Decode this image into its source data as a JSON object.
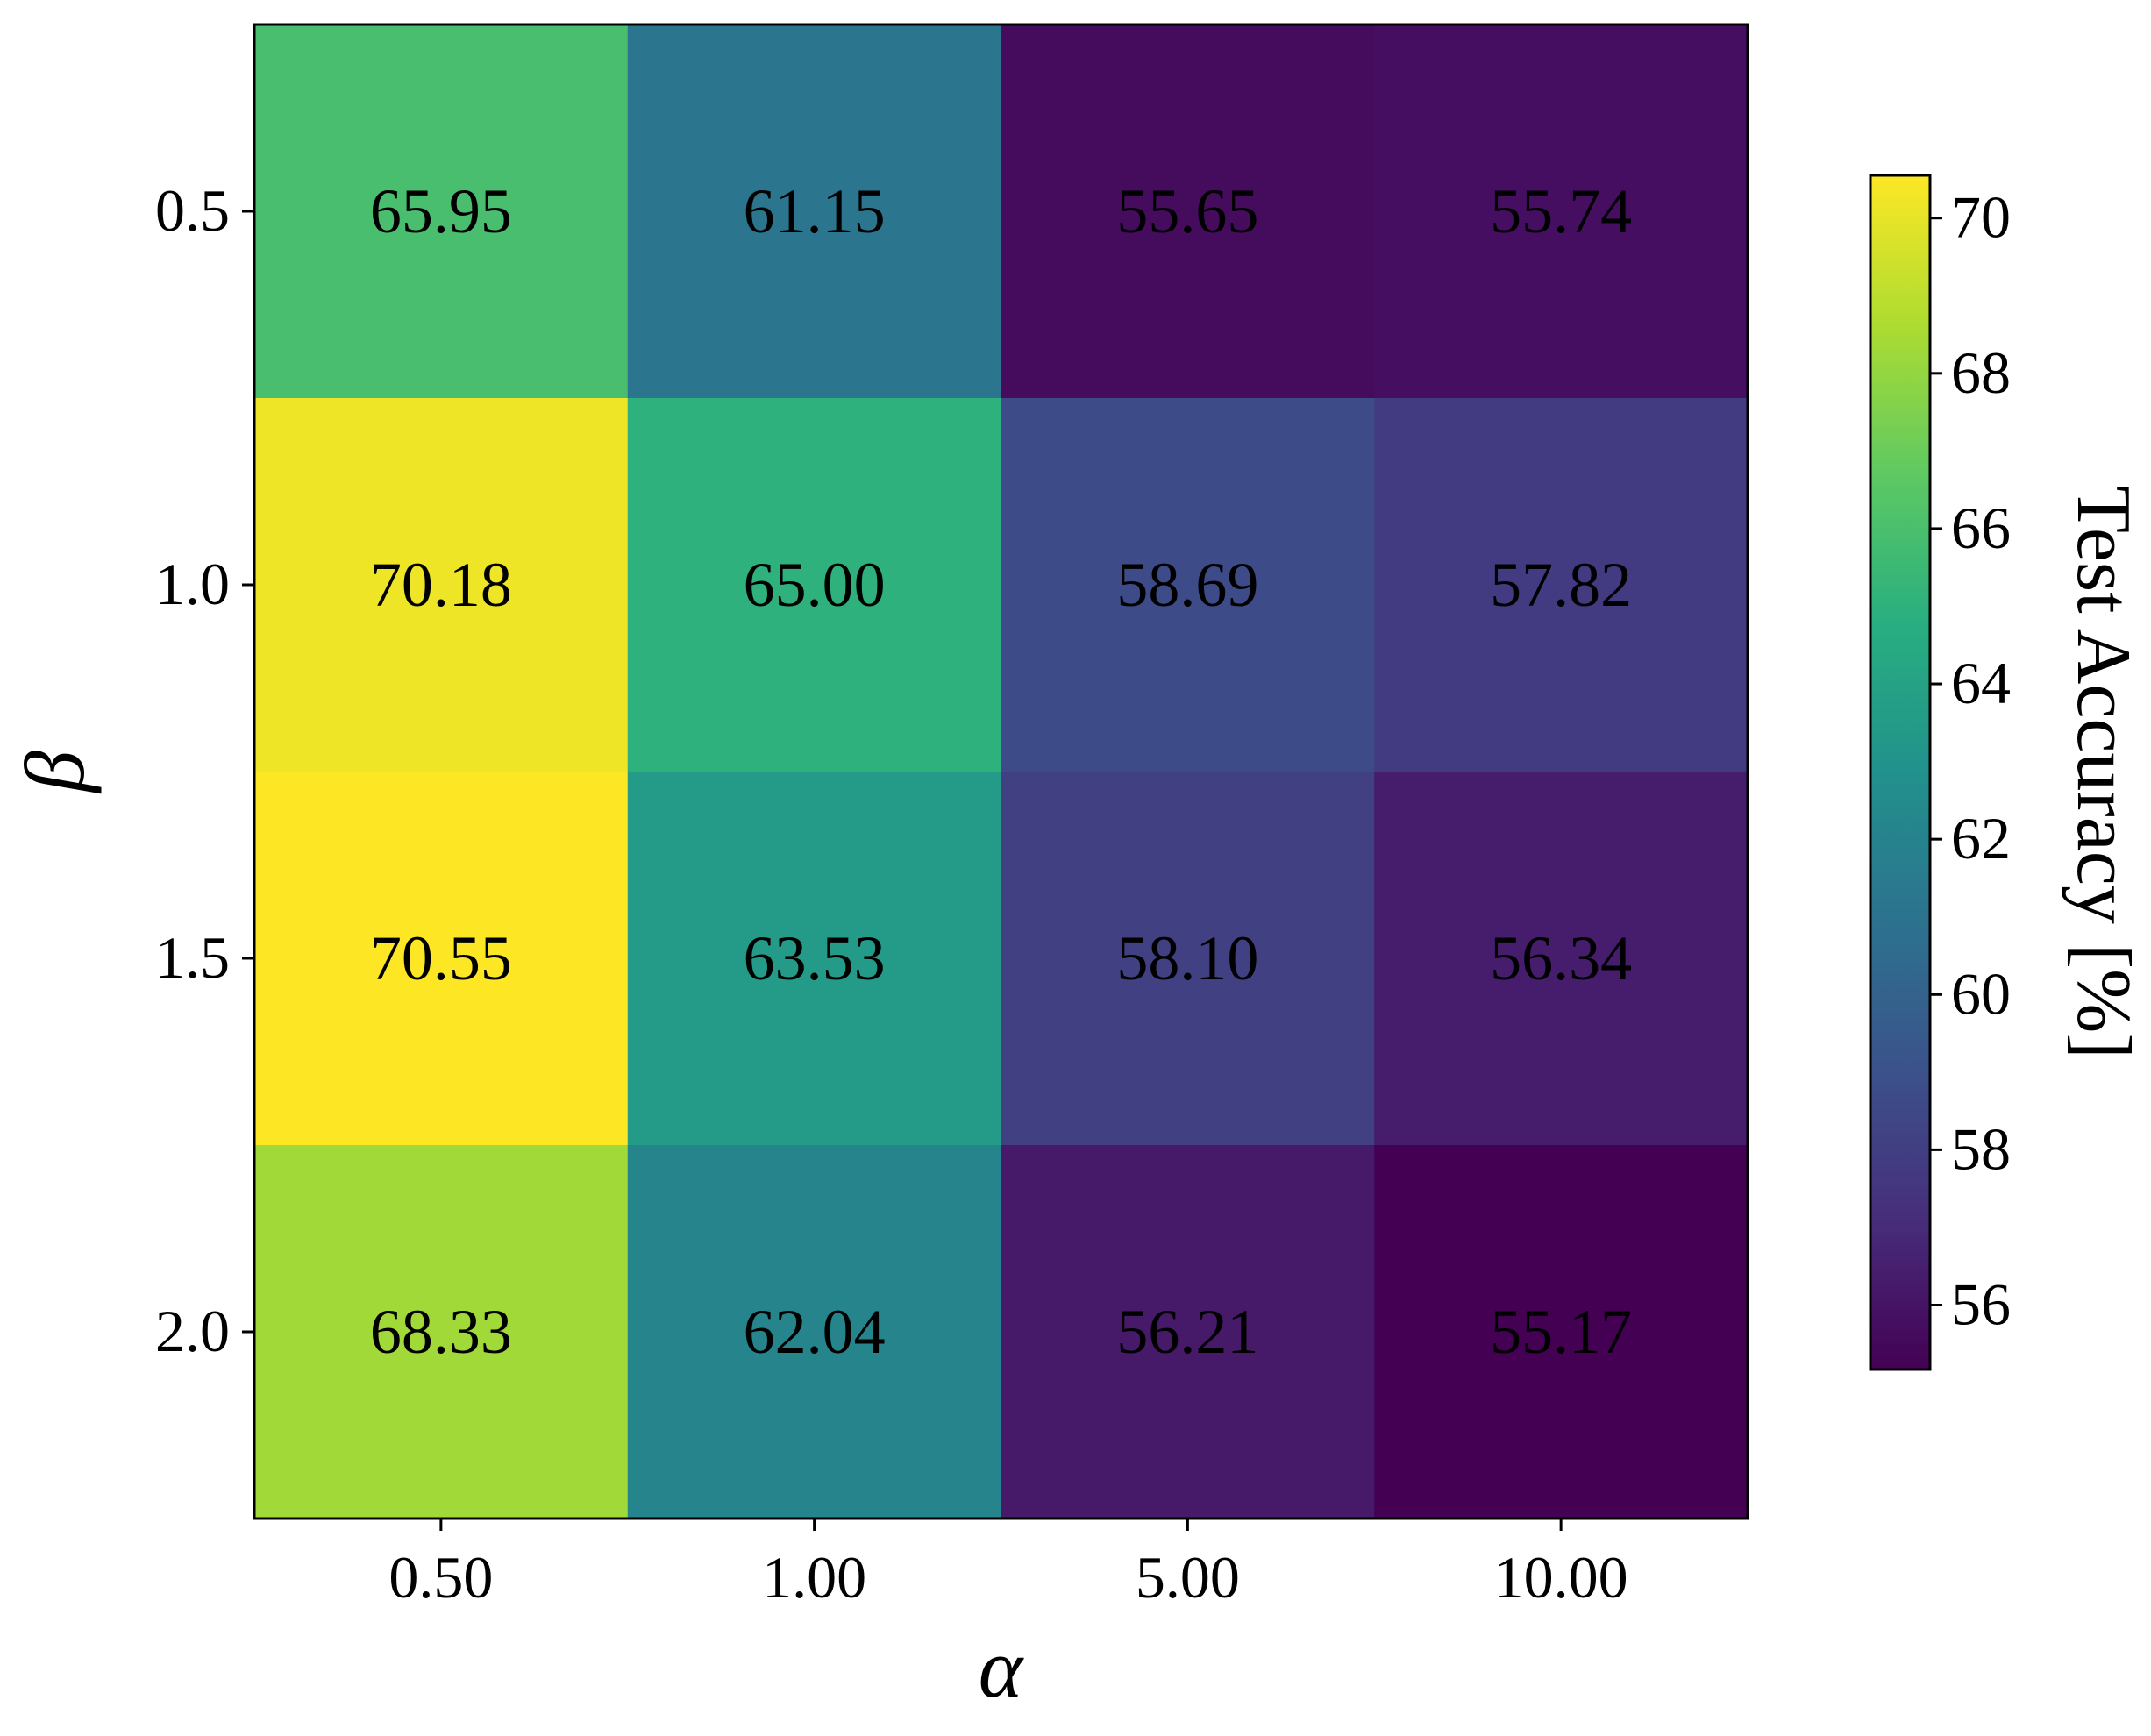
{
  "chart_data": {
    "type": "heatmap",
    "title": "",
    "xlabel": "α",
    "ylabel": "β",
    "x_categories": [
      "0.50",
      "1.00",
      "5.00",
      "10.00"
    ],
    "y_categories": [
      "0.5",
      "1.0",
      "1.5",
      "2.0"
    ],
    "values": [
      [
        65.95,
        61.15,
        55.65,
        55.74
      ],
      [
        70.18,
        65.0,
        58.69,
        57.82
      ],
      [
        70.55,
        63.53,
        58.1,
        56.34
      ],
      [
        68.33,
        62.04,
        56.21,
        55.17
      ]
    ],
    "value_labels": [
      [
        "65.95",
        "61.15",
        "55.65",
        "55.74"
      ],
      [
        "70.18",
        "65.00",
        "58.69",
        "57.82"
      ],
      [
        "70.55",
        "63.53",
        "58.10",
        "56.34"
      ],
      [
        "68.33",
        "62.04",
        "56.21",
        "55.17"
      ]
    ],
    "colormap": "viridis",
    "colorbar": {
      "label": "Test Accuracy [%]",
      "range": [
        55.17,
        70.55
      ],
      "ticks": [
        "56",
        "58",
        "60",
        "62",
        "64",
        "66",
        "68",
        "70"
      ],
      "placement": "right"
    },
    "grid": false
  }
}
